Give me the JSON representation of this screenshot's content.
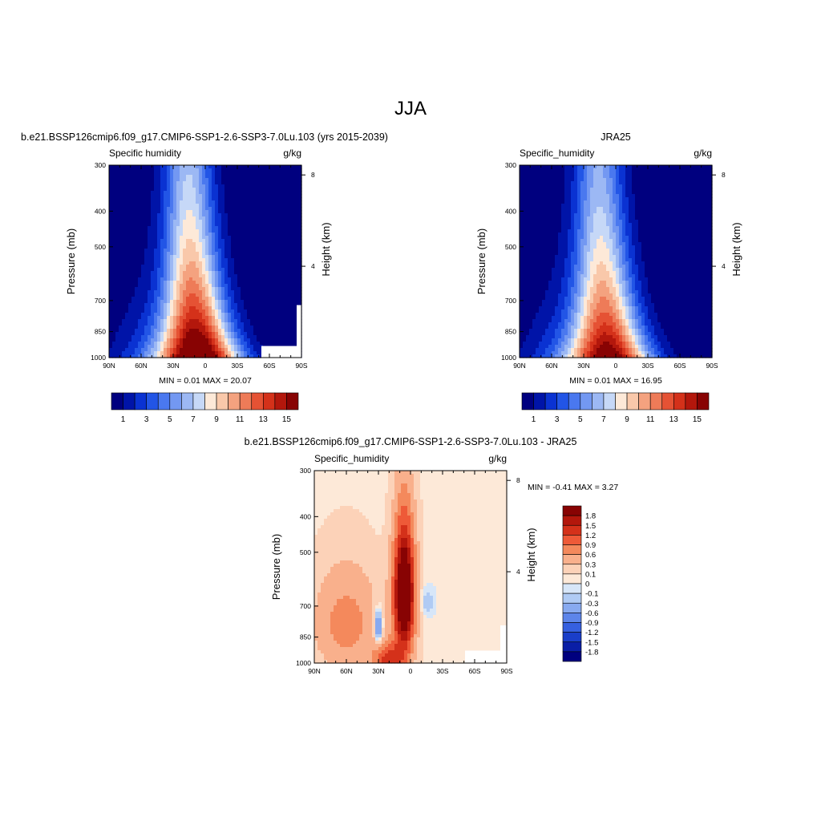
{
  "page_title": "JJA",
  "chart_data": [
    {
      "type": "contour",
      "title": "b.e21.BSSP126cmip6.f09_g17.CMIP6-SSP1-2.6-SSP3-7.0Lu.103 (yrs 2015-2039)",
      "left_label": "Specific humidity",
      "units": "g/kg",
      "ylabel": "Pressure (mb)",
      "ylabel_right": "Height (km)",
      "x_ticks": [
        "90N",
        "60N",
        "30N",
        "0",
        "30S",
        "60S",
        "90S"
      ],
      "y_ticks": [
        300,
        400,
        500,
        700,
        850,
        1000
      ],
      "y_right_ticks": [
        8,
        4
      ],
      "stats_text": "MIN =   0.01  MAX =  20.07",
      "min": 0.01,
      "max": 20.07,
      "colorbar_labels": [
        "1",
        "3",
        "5",
        "7",
        "9",
        "11",
        "13",
        "15"
      ],
      "levels": [
        1,
        2,
        3,
        4,
        5,
        6,
        7,
        8,
        9,
        10,
        11,
        12,
        13,
        14,
        15,
        16
      ]
    },
    {
      "type": "contour",
      "title": "JRA25",
      "left_label": "Specific_humidity",
      "units": "g/kg",
      "ylabel": "Pressure (mb)",
      "ylabel_right": "Height (km)",
      "x_ticks": [
        "90N",
        "60N",
        "30N",
        "0",
        "30S",
        "60S",
        "90S"
      ],
      "y_ticks": [
        300,
        400,
        500,
        700,
        850,
        1000
      ],
      "y_right_ticks": [
        8,
        4
      ],
      "stats_text": "MIN =   0.01  MAX =  16.95",
      "min": 0.01,
      "max": 16.95,
      "colorbar_labels": [
        "1",
        "3",
        "5",
        "7",
        "9",
        "11",
        "13",
        "15"
      ],
      "levels": [
        1,
        2,
        3,
        4,
        5,
        6,
        7,
        8,
        9,
        10,
        11,
        12,
        13,
        14,
        15,
        16
      ]
    },
    {
      "type": "contour",
      "title": "b.e21.BSSP126cmip6.f09_g17.CMIP6-SSP1-2.6-SSP3-7.0Lu.103 - JRA25",
      "left_label": "Specific_humidity",
      "units": "g/kg",
      "ylabel": "Pressure (mb)",
      "ylabel_right": "Height (km)",
      "x_ticks": [
        "90N",
        "60N",
        "30N",
        "0",
        "30S",
        "60S",
        "90S"
      ],
      "y_ticks": [
        300,
        400,
        500,
        700,
        850,
        1000
      ],
      "y_right_ticks": [
        8,
        4
      ],
      "stats_text": "MIN =  -0.41  MAX =   3.27",
      "min": -0.41,
      "max": 3.27,
      "colorbar_labels": [
        "1.8",
        "1.5",
        "1.2",
        "0.9",
        "0.6",
        "0.3",
        "0.1",
        "0",
        "-0.1",
        "-0.3",
        "-0.6",
        "-0.9",
        "-1.2",
        "-1.5",
        "-1.8"
      ],
      "levels": [
        1.8,
        1.5,
        1.2,
        0.9,
        0.6,
        0.3,
        0.1,
        0,
        -0.1,
        -0.3,
        -0.6,
        -0.9,
        -1.2,
        -1.5,
        -1.8
      ]
    }
  ]
}
